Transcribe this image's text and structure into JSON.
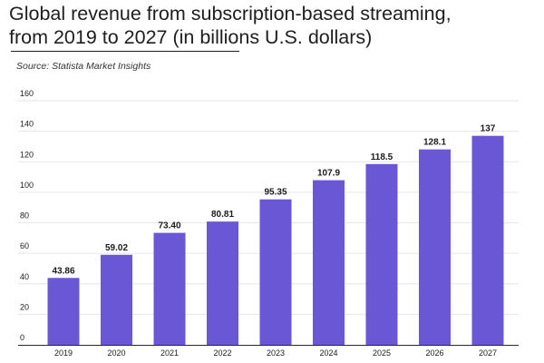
{
  "header": {
    "title_line1": "Global revenue from subscription-based streaming,",
    "title_line2": "from 2019 to 2027 (in billions U.S. dollars)",
    "source": "Source: Statista Market Insights"
  },
  "colors": {
    "bar": "#6a57d5",
    "grid": "#e6e6e6",
    "axis": "#2a2a2a",
    "text": "#1b1b1b"
  },
  "chart_data": {
    "type": "bar",
    "title": "Global revenue from subscription-based streaming, from 2019 to 2027 (in billions U.S. dollars)",
    "xlabel": "",
    "ylabel": "",
    "categories": [
      "2019",
      "2020",
      "2021",
      "2022",
      "2023",
      "2024",
      "2025",
      "2026",
      "2027"
    ],
    "values": [
      43.86,
      59.02,
      73.4,
      80.81,
      95.35,
      107.9,
      118.5,
      128.1,
      137
    ],
    "value_labels": [
      "43.86",
      "59.02",
      "73.40",
      "80.81",
      "95.35",
      "107.9",
      "118.5",
      "128.1",
      "137"
    ],
    "ylim": [
      0,
      160
    ],
    "yticks": [
      0,
      20,
      40,
      60,
      80,
      100,
      120,
      140,
      160
    ],
    "grid": true,
    "legend": "none"
  }
}
